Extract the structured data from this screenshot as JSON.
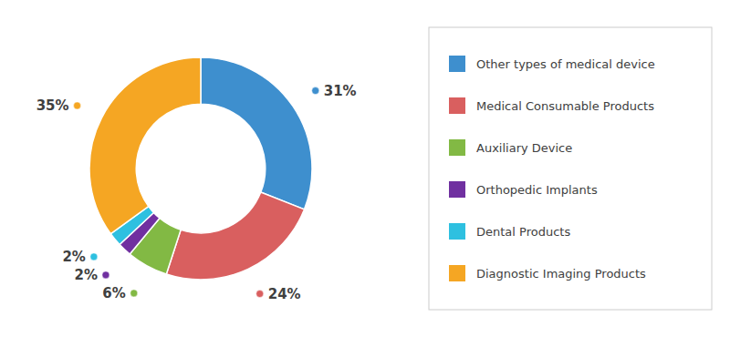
{
  "chart_data": {
    "type": "donut",
    "categories": [
      "Other types of medical device",
      "Medical Consumable Products",
      "Auxiliary Device",
      "Orthopedic Implants",
      "Dental Products",
      "Diagnostic Imaging Products"
    ],
    "values": [
      31,
      24,
      6,
      2,
      2,
      35
    ],
    "value_labels": [
      "31%",
      "24%",
      "6%",
      "2%",
      "2%",
      "35%"
    ],
    "colors": [
      "#3e8fce",
      "#d95f5f",
      "#82b944",
      "#7030a0",
      "#2ec0e0",
      "#f5a623"
    ],
    "data_labels": true,
    "legend": "right"
  }
}
